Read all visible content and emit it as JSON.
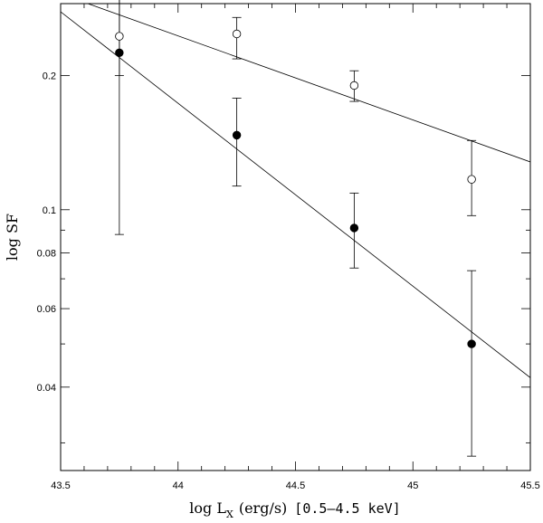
{
  "chart_data": {
    "type": "scatter",
    "title": "",
    "xlabel": {
      "main": "log L",
      "subscript": "X",
      "units": "(erg/s)",
      "band": "[0.5–4.5 keV]"
    },
    "ylabel": "log SF",
    "xlim": [
      43.5,
      45.5
    ],
    "ylim": [
      0.026,
      0.29
    ],
    "yscale": "log",
    "grid": false,
    "x_ticks": [
      {
        "value": 43.5,
        "label": "43.5"
      },
      {
        "value": 44,
        "label": "44"
      },
      {
        "value": 44.5,
        "label": "44.5"
      },
      {
        "value": 45,
        "label": "45"
      },
      {
        "value": 45.5,
        "label": "45.5"
      }
    ],
    "y_ticks": [
      {
        "value": 0.04,
        "label": "0.04"
      },
      {
        "value": 0.06,
        "label": "0.06"
      },
      {
        "value": 0.08,
        "label": "0.08"
      },
      {
        "value": 0.1,
        "label": "0.1"
      },
      {
        "value": 0.2,
        "label": "0.2"
      }
    ],
    "series": [
      {
        "marker": "open-circle",
        "points": [
          {
            "x": 43.75,
            "y": 0.245,
            "y_err_low": 0.2,
            "y_err_high": 0.298
          },
          {
            "x": 44.25,
            "y": 0.248,
            "y_err_low": 0.218,
            "y_err_high": 0.27
          },
          {
            "x": 44.75,
            "y": 0.19,
            "y_err_low": 0.175,
            "y_err_high": 0.205
          },
          {
            "x": 45.25,
            "y": 0.117,
            "y_err_low": 0.097,
            "y_err_high": 0.143
          }
        ],
        "fit": {
          "x": [
            43.5,
            45.5
          ],
          "y": [
            0.305,
            0.128
          ]
        }
      },
      {
        "marker": "filled-circle",
        "points": [
          {
            "x": 43.75,
            "y": 0.225,
            "y_err_low": 0.088,
            "y_err_high": 0.298
          },
          {
            "x": 44.25,
            "y": 0.147,
            "y_err_low": 0.113,
            "y_err_high": 0.178
          },
          {
            "x": 44.75,
            "y": 0.091,
            "y_err_low": 0.074,
            "y_err_high": 0.109
          },
          {
            "x": 45.25,
            "y": 0.05,
            "y_err_low": 0.028,
            "y_err_high": 0.073
          }
        ],
        "fit": {
          "x": [
            43.5,
            45.5
          ],
          "y": [
            0.278,
            0.042
          ]
        }
      }
    ]
  }
}
